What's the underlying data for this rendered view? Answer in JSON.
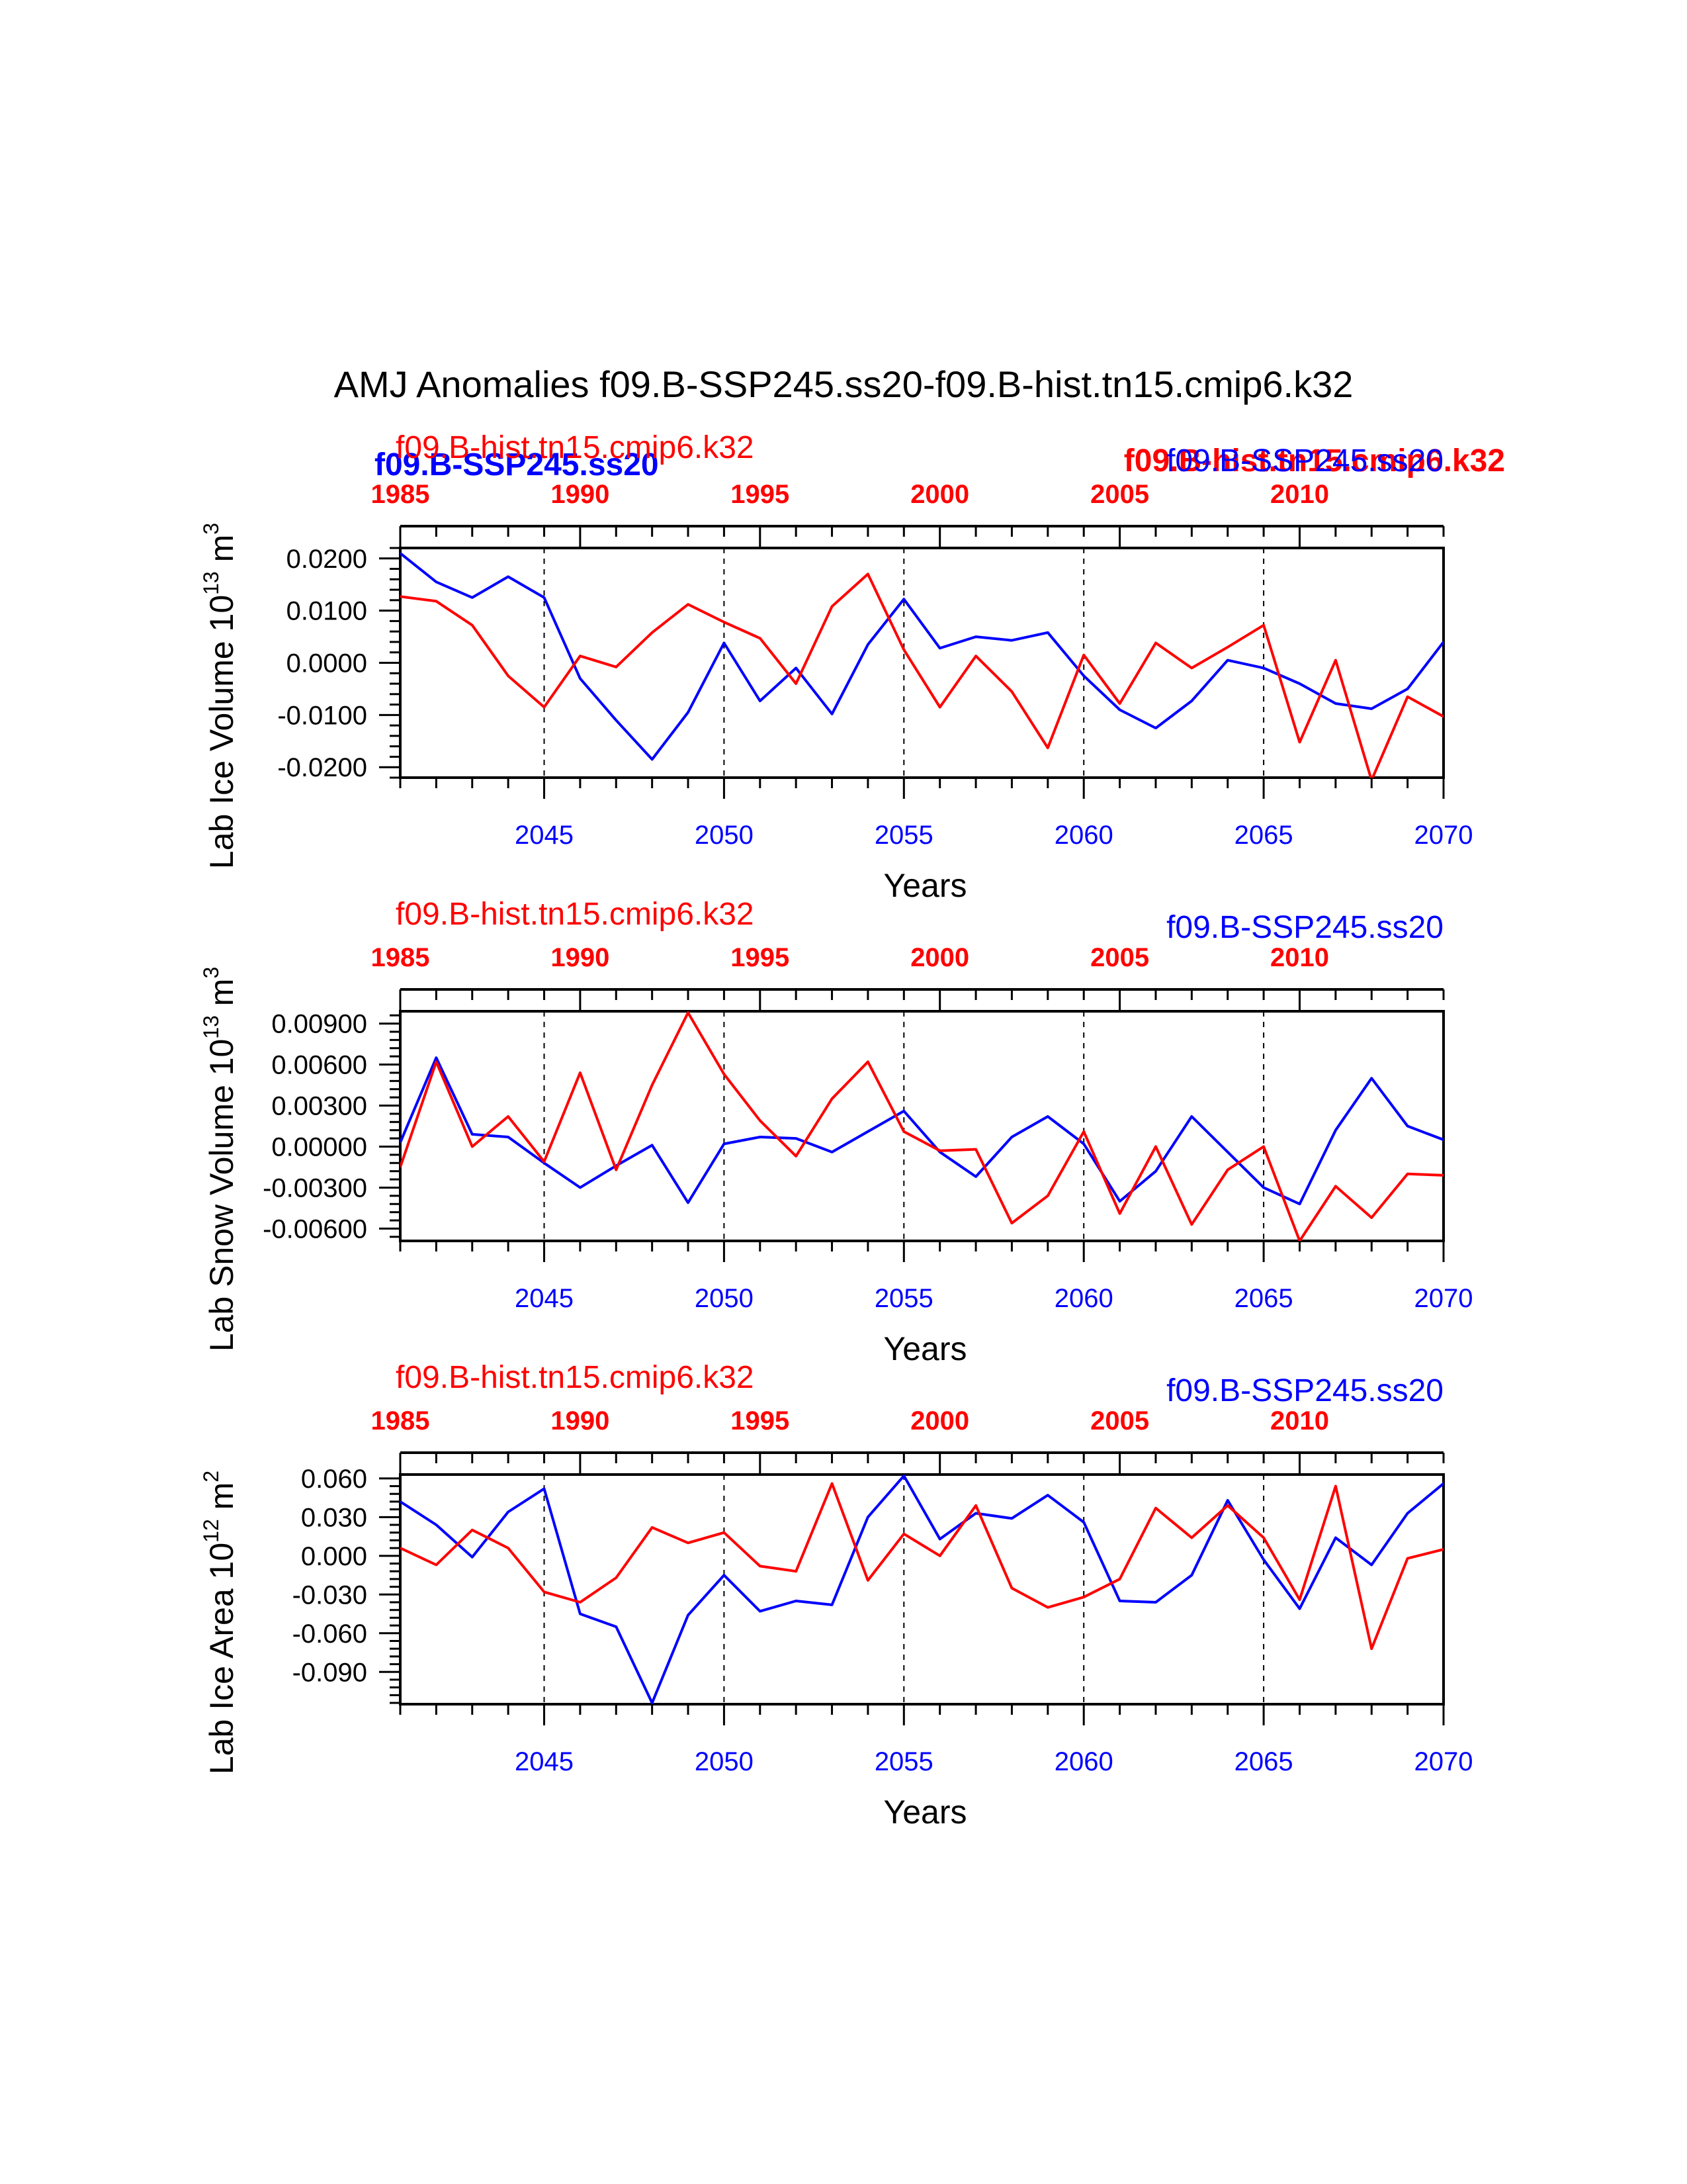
{
  "figure": {
    "title": "AMJ Anomalies f09.B-SSP245.ss20-f09.B-hist.tn15.cmip6.k32",
    "colors": {
      "ssp": "#0000ff",
      "hist": "#ff0000",
      "axis": "#000000"
    },
    "overlay_labels": {
      "ssp_bold_left": "f09.B-SSP245.ss20",
      "hist_bold_right": "f09.B-hist.tn15.cmip6.k32"
    }
  },
  "chart_data": [
    {
      "type": "line",
      "title": "",
      "ylabel": "Lab Ice Volume 10",
      "ylabel_exp": "13",
      "ylabel_unit": " m",
      "ylabel_unit_exp": "3",
      "xlabel": "Years",
      "ylim": [
        -0.022,
        0.022
      ],
      "yticks": [
        0.02,
        0.01,
        0.0,
        -0.01,
        -0.02
      ],
      "ytick_labels": [
        "0.0200",
        "0.0100",
        "0.0000",
        "-0.0100",
        "-0.0200"
      ],
      "x_bottom": {
        "min": 2041,
        "max": 2070,
        "ticks": [
          2045,
          2050,
          2055,
          2060,
          2065,
          2070
        ],
        "tick_labels": [
          "2045",
          "2050",
          "2055",
          "2060",
          "2065",
          "2070"
        ]
      },
      "x_top": {
        "min": 1985,
        "max": 2014,
        "ticks": [
          1985,
          1990,
          1995,
          2000,
          2005,
          2010
        ],
        "tick_labels": [
          "1985",
          "1990",
          "1995",
          "2000",
          "2005",
          "2010"
        ]
      },
      "grid_vlines_at": [
        2045,
        2050,
        2055,
        2060,
        2065
      ],
      "legend_left": "f09.B-hist.tn15.cmip6.k32",
      "legend_right": "f09.B-SSP245.ss20",
      "series": [
        {
          "name": "f09.B-SSP245.ss20",
          "color": "#0000ff",
          "x_axis": "bottom",
          "x": [
            2041,
            2042,
            2043,
            2044,
            2045,
            2046,
            2047,
            2048,
            2049,
            2050,
            2051,
            2052,
            2053,
            2054,
            2055,
            2056,
            2057,
            2058,
            2059,
            2060,
            2061,
            2062,
            2063,
            2064,
            2065,
            2066,
            2067,
            2068,
            2069,
            2070
          ],
          "values": [
            0.021,
            0.0155,
            0.0125,
            0.0165,
            0.0125,
            -0.003,
            -0.011,
            -0.0185,
            -0.0095,
            0.0038,
            -0.0073,
            -0.001,
            -0.0098,
            0.0035,
            0.0122,
            0.0028,
            0.005,
            0.0043,
            0.0058,
            -0.0025,
            -0.009,
            -0.0125,
            -0.0073,
            0.0005,
            -0.001,
            -0.004,
            -0.0078,
            -0.0088,
            -0.005,
            0.004
          ]
        },
        {
          "name": "f09.B-hist.tn15.cmip6.k32",
          "color": "#ff0000",
          "x_axis": "top",
          "x": [
            1985,
            1986,
            1987,
            1988,
            1989,
            1990,
            1991,
            1992,
            1993,
            1994,
            1995,
            1996,
            1997,
            1998,
            1999,
            2000,
            2001,
            2002,
            2003,
            2004,
            2005,
            2006,
            2007,
            2008,
            2009,
            2010,
            2011,
            2012,
            2013,
            2014
          ],
          "values": [
            0.0127,
            0.0118,
            0.0072,
            -0.0025,
            -0.0085,
            0.0013,
            -0.0008,
            0.0058,
            0.0112,
            0.0078,
            0.0047,
            -0.004,
            0.0108,
            0.017,
            0.0025,
            -0.0085,
            0.0013,
            -0.0055,
            -0.0163,
            0.0015,
            -0.0078,
            0.0038,
            -0.001,
            0.003,
            0.0072,
            -0.0152,
            0.0005,
            -0.0225,
            -0.0065,
            -0.0103
          ]
        }
      ]
    },
    {
      "type": "line",
      "title": "",
      "ylabel": "Lab Snow Volume 10",
      "ylabel_exp": "13",
      "ylabel_unit": " m",
      "ylabel_unit_exp": "3",
      "xlabel": "Years",
      "ylim": [
        -0.0069,
        0.0099
      ],
      "yticks": [
        0.009,
        0.006,
        0.003,
        0.0,
        -0.003,
        -0.006
      ],
      "ytick_labels": [
        "0.00900",
        "0.00600",
        "0.00300",
        "0.00000",
        "-0.00300",
        "-0.00600"
      ],
      "x_bottom": {
        "min": 2041,
        "max": 2070,
        "ticks": [
          2045,
          2050,
          2055,
          2060,
          2065,
          2070
        ],
        "tick_labels": [
          "2045",
          "2050",
          "2055",
          "2060",
          "2065",
          "2070"
        ]
      },
      "x_top": {
        "min": 1985,
        "max": 2014,
        "ticks": [
          1985,
          1990,
          1995,
          2000,
          2005,
          2010
        ],
        "tick_labels": [
          "1985",
          "1990",
          "1995",
          "2000",
          "2005",
          "2010"
        ]
      },
      "grid_vlines_at": [
        2045,
        2050,
        2055,
        2060,
        2065
      ],
      "legend_left": "f09.B-hist.tn15.cmip6.k32",
      "legend_right": "f09.B-SSP245.ss20",
      "series": [
        {
          "name": "f09.B-SSP245.ss20",
          "color": "#0000ff",
          "x_axis": "bottom",
          "x": [
            2041,
            2042,
            2043,
            2044,
            2045,
            2046,
            2047,
            2048,
            2049,
            2050,
            2051,
            2052,
            2053,
            2054,
            2055,
            2056,
            2057,
            2058,
            2059,
            2060,
            2061,
            2062,
            2063,
            2064,
            2065,
            2066,
            2067,
            2068,
            2069,
            2070
          ],
          "values": [
            0.0003,
            0.0065,
            0.0009,
            0.0007,
            -0.0012,
            -0.003,
            -0.0014,
            0.0001,
            -0.0041,
            0.0002,
            0.0007,
            0.0006,
            -0.0004,
            0.0011,
            0.0026,
            -0.0004,
            -0.0022,
            0.0007,
            0.0022,
            0.0002,
            -0.004,
            -0.0018,
            0.0022,
            -0.0004,
            -0.003,
            -0.0042,
            0.0012,
            0.005,
            0.0015,
            0.0005
          ]
        },
        {
          "name": "f09.B-hist.tn15.cmip6.k32",
          "color": "#ff0000",
          "x_axis": "top",
          "x": [
            1985,
            1986,
            1987,
            1988,
            1989,
            1990,
            1991,
            1992,
            1993,
            1994,
            1995,
            1996,
            1997,
            1998,
            1999,
            2000,
            2001,
            2002,
            2003,
            2004,
            2005,
            2006,
            2007,
            2008,
            2009,
            2010,
            2011,
            2012,
            2013,
            2014
          ],
          "values": [
            -0.0015,
            0.0062,
            0.0,
            0.0022,
            -0.0011,
            0.0054,
            -0.0017,
            0.0045,
            0.0098,
            0.0053,
            0.0019,
            -0.0007,
            0.0035,
            0.0062,
            0.0011,
            -0.0003,
            -0.0002,
            -0.0056,
            -0.0036,
            0.0011,
            -0.0049,
            0.0,
            -0.0057,
            -0.0017,
            0.0,
            -0.0069,
            -0.0029,
            -0.0052,
            -0.002,
            -0.0021
          ]
        }
      ]
    },
    {
      "type": "line",
      "title": "",
      "ylabel": "Lab Ice Area 10",
      "ylabel_exp": "12",
      "ylabel_unit": " m",
      "ylabel_unit_exp": "2",
      "xlabel": "Years",
      "ylim": [
        -0.115,
        0.063
      ],
      "yticks": [
        0.06,
        0.03,
        0.0,
        -0.03,
        -0.06,
        -0.09
      ],
      "ytick_labels": [
        "0.060",
        "0.030",
        "0.000",
        "-0.030",
        "-0.060",
        "-0.090"
      ],
      "x_bottom": {
        "min": 2041,
        "max": 2070,
        "ticks": [
          2045,
          2050,
          2055,
          2060,
          2065,
          2070
        ],
        "tick_labels": [
          "2045",
          "2050",
          "2055",
          "2060",
          "2065",
          "2070"
        ]
      },
      "x_top": {
        "min": 1985,
        "max": 2014,
        "ticks": [
          1985,
          1990,
          1995,
          2000,
          2005,
          2010
        ],
        "tick_labels": [
          "1985",
          "1990",
          "1995",
          "2000",
          "2005",
          "2010"
        ]
      },
      "grid_vlines_at": [
        2045,
        2050,
        2055,
        2060,
        2065
      ],
      "legend_left": "f09.B-hist.tn15.cmip6.k32",
      "legend_right": "f09.B-SSP245.ss20",
      "series": [
        {
          "name": "f09.B-SSP245.ss20",
          "color": "#0000ff",
          "x_axis": "bottom",
          "x": [
            2041,
            2042,
            2043,
            2044,
            2045,
            2046,
            2047,
            2048,
            2049,
            2050,
            2051,
            2052,
            2053,
            2054,
            2055,
            2056,
            2057,
            2058,
            2059,
            2060,
            2061,
            2062,
            2063,
            2064,
            2065,
            2066,
            2067,
            2068,
            2069,
            2070
          ],
          "values": [
            0.042,
            0.024,
            -0.001,
            0.034,
            0.052,
            -0.045,
            -0.055,
            -0.114,
            -0.046,
            -0.015,
            -0.043,
            -0.035,
            -0.038,
            0.03,
            0.062,
            0.013,
            0.033,
            0.029,
            0.047,
            0.026,
            -0.035,
            -0.036,
            -0.015,
            0.043,
            -0.003,
            -0.041,
            0.014,
            -0.007,
            0.033,
            0.056
          ]
        },
        {
          "name": "f09.B-hist.tn15.cmip6.k32",
          "color": "#ff0000",
          "x_axis": "top",
          "x": [
            1985,
            1986,
            1987,
            1988,
            1989,
            1990,
            1991,
            1992,
            1993,
            1994,
            1995,
            1996,
            1997,
            1998,
            1999,
            2000,
            2001,
            2002,
            2003,
            2004,
            2005,
            2006,
            2007,
            2008,
            2009,
            2010,
            2011,
            2012,
            2013,
            2014
          ],
          "values": [
            0.006,
            -0.007,
            0.02,
            0.006,
            -0.028,
            -0.036,
            -0.017,
            0.022,
            0.01,
            0.018,
            -0.008,
            -0.012,
            0.056,
            -0.019,
            0.017,
            0.0,
            0.039,
            -0.025,
            -0.04,
            -0.032,
            -0.018,
            0.037,
            0.014,
            0.039,
            0.014,
            -0.034,
            0.054,
            -0.072,
            -0.002,
            0.005
          ]
        }
      ]
    }
  ]
}
